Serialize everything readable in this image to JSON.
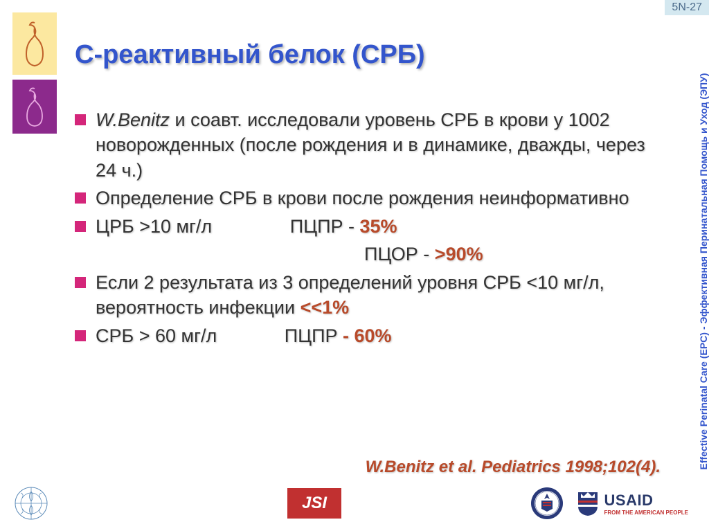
{
  "slide_number": "5N-27",
  "side_label": "Effective Perinatal Care (EPC) - Эффективная Перинатальная Помощь и Уход (ЭПУ)",
  "title": "С-реактивный белок (СРБ)",
  "bullets": [
    {
      "prefix_italic": "W.Benitz",
      "text": " и соавт. исследовали уровень СРБ в крови у 1002 новорожденных (после рождения и в динамике, дважды, через 24 ч.)"
    },
    {
      "text": "Определение СРБ в крови после рождения неинформативно"
    },
    {
      "text_parts": [
        {
          "t": "ЦРБ >10 мг/л",
          "pad": "               "
        },
        {
          "t": "ПЦПР - "
        },
        {
          "t": "35%",
          "accent": true
        }
      ]
    }
  ],
  "indent_line_parts": [
    {
      "t": "ПЦОР - "
    },
    {
      "t": ">90%",
      "accent": true
    }
  ],
  "bullets2": [
    {
      "text_parts": [
        {
          "t": "Если 2 результата из 3 определений уровня СРБ <10 мг/л, вероятность инфекции "
        },
        {
          "t": "<<1%",
          "accent": true
        }
      ]
    },
    {
      "text_parts": [
        {
          "t": "СРБ >  60 мг/л",
          "pad": "             "
        },
        {
          "t": "ПЦПР "
        },
        {
          "t": "- 60%",
          "accent": true
        }
      ]
    }
  ],
  "citation": {
    "author": "W.Benitz",
    "rest": " et al. Pediatrics 1998;102(4)."
  },
  "footer": {
    "jsi": "JSI",
    "usaid_main": "USAID",
    "usaid_sub": "FROM THE AMERICAN PEOPLE"
  },
  "colors": {
    "title": "#3355cc",
    "bullet": "#d4267a",
    "accent": "#b84a2a",
    "logo1_bg": "#fce8a0",
    "logo2_bg": "#8c2a8c",
    "jsi_bg": "#c13030"
  }
}
